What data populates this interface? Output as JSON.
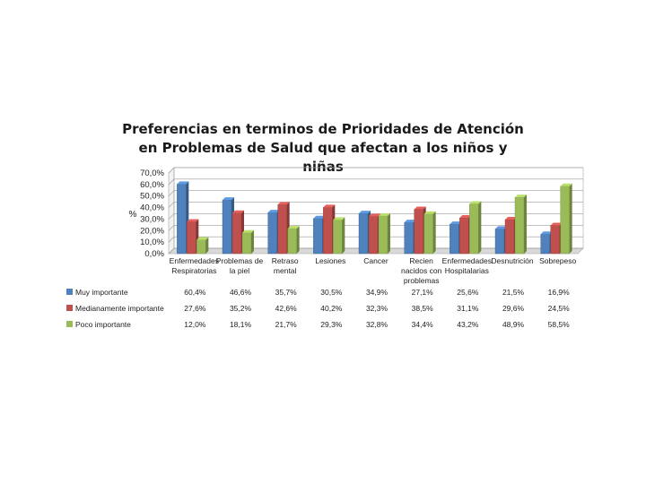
{
  "chart_data": {
    "type": "bar",
    "title": "Preferencias en terminos de Prioridades de Atención en Problemas de Salud que afectan a los niños y niñas",
    "ylabel": "%",
    "ylim": [
      0,
      70
    ],
    "yticks": [
      "0,0%",
      "10,0%",
      "20,0%",
      "30,0%",
      "40,0%",
      "50,0%",
      "60,0%",
      "70,0%"
    ],
    "grid": true,
    "legend": "table-left",
    "categories": [
      [
        "Enfermedades",
        "Respiratorias"
      ],
      [
        "Problemas de",
        "la piel"
      ],
      [
        "Retraso",
        "mental"
      ],
      [
        "Lesiones"
      ],
      [
        "Cancer"
      ],
      [
        "Recien",
        "nacidos con",
        "problemas"
      ],
      [
        "Enfermedades",
        "Hospitalarias"
      ],
      [
        "Desnutrición"
      ],
      [
        "Sobrepeso"
      ]
    ],
    "series": [
      {
        "name": "Muy importante",
        "color": "#4F81BD",
        "values": [
          60.4,
          46.6,
          35.7,
          30.5,
          34.9,
          27.1,
          25.6,
          21.5,
          16.9
        ],
        "labels": [
          "60,4%",
          "46,6%",
          "35,7%",
          "30,5%",
          "34,9%",
          "27,1%",
          "25,6%",
          "21,5%",
          "16,9%"
        ]
      },
      {
        "name": "Medianamente importante",
        "color": "#C0504D",
        "values": [
          27.6,
          35.2,
          42.6,
          40.2,
          32.3,
          38.5,
          31.1,
          29.6,
          24.5
        ],
        "labels": [
          "27,6%",
          "35,2%",
          "42,6%",
          "40,2%",
          "32,3%",
          "38,5%",
          "31,1%",
          "29,6%",
          "24,5%"
        ]
      },
      {
        "name": "Poco importante",
        "color": "#9BBB59",
        "values": [
          12.0,
          18.1,
          21.7,
          29.3,
          32.8,
          34.4,
          43.2,
          48.9,
          58.5
        ],
        "labels": [
          "12,0%",
          "18,1%",
          "21,7%",
          "29,3%",
          "32,8%",
          "34,4%",
          "43,2%",
          "48,9%",
          "58,5%"
        ]
      }
    ]
  }
}
